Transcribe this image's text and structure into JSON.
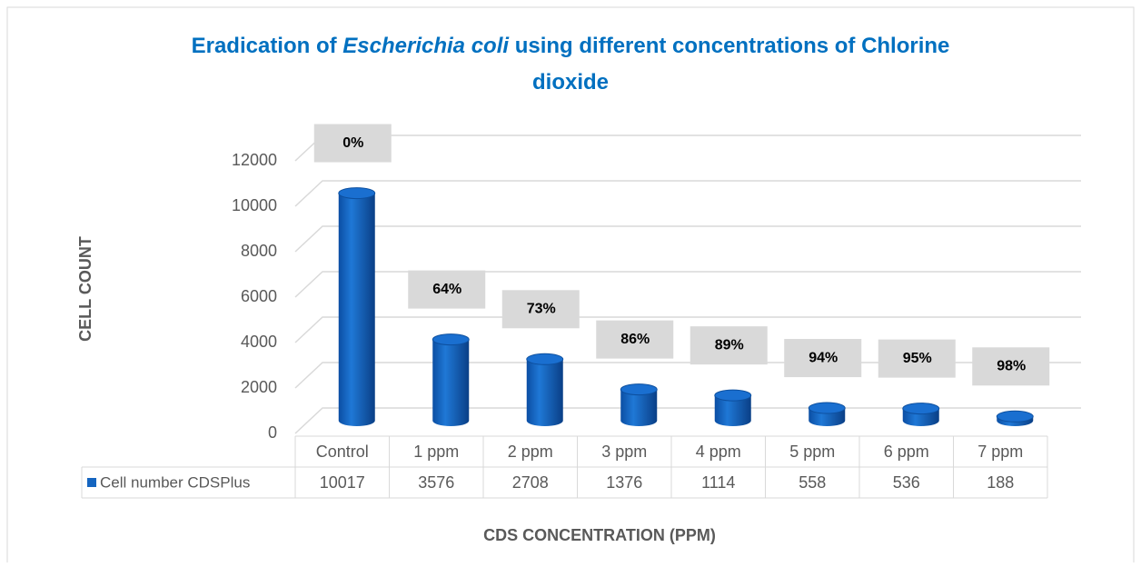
{
  "chart_data": {
    "type": "bar",
    "title_lines": [
      [
        {
          "text": "Eradication of "
        },
        {
          "text": "Escherichia coli",
          "italic": true
        },
        {
          "text": " using different concentrations of Chlorine"
        }
      ],
      [
        {
          "text": "dioxide"
        }
      ]
    ],
    "x_label": "CDS CONCENTRATION (PPM)",
    "y_label": "CELL COUNT",
    "categories": [
      "Control",
      "1 ppm",
      "2 ppm",
      "3 ppm",
      "4 ppm",
      "5 ppm",
      "6 ppm",
      "7 ppm"
    ],
    "series": [
      {
        "name": "Cell number CDSPlus",
        "color": "#1565c0",
        "values": [
          10017,
          3576,
          2708,
          1376,
          1114,
          558,
          536,
          188
        ]
      }
    ],
    "eradication": {
      "values": [
        0,
        64,
        73,
        86,
        89,
        94,
        95,
        98
      ],
      "value_labels": [
        "0%",
        "64%",
        "73%",
        "86%",
        "89%",
        "94%",
        "95%",
        "98%"
      ]
    },
    "ylim": [
      0,
      12000
    ],
    "yticks": [
      0,
      2000,
      4000,
      6000,
      8000,
      10000,
      12000
    ],
    "grid": true,
    "data_table": true
  }
}
